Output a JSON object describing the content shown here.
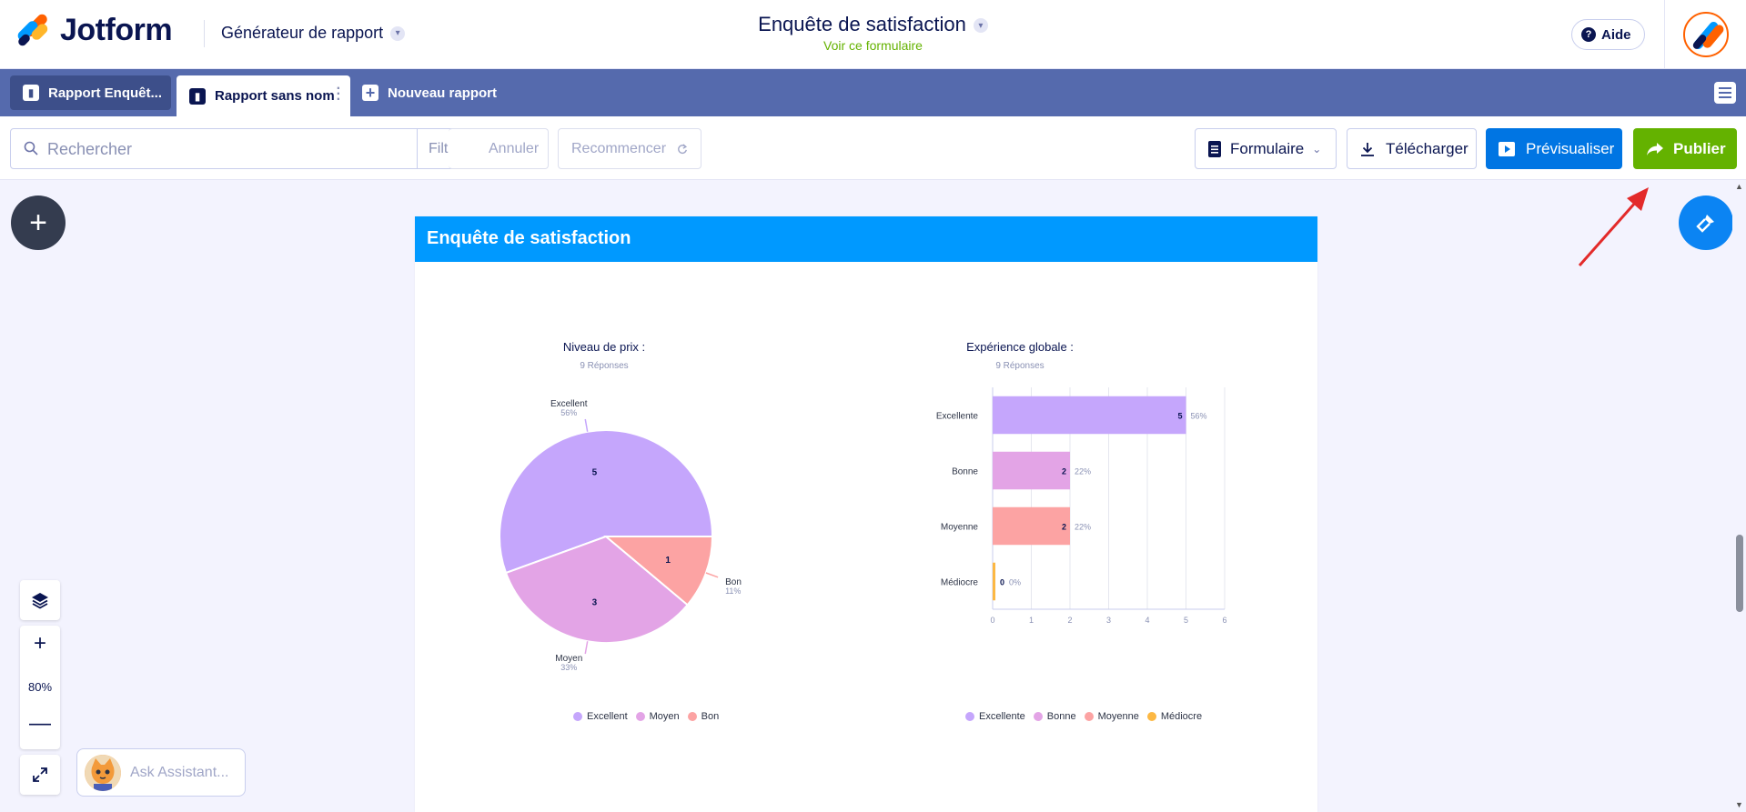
{
  "header": {
    "logo_text": "Jotform",
    "app_switcher": "Générateur de rapport",
    "form_title": "Enquête de satisfaction",
    "form_link": "Voir ce formulaire",
    "help_label": "Aide"
  },
  "tabs": [
    {
      "label": "Rapport Enquêt..."
    },
    {
      "label": "Rapport sans nom"
    },
    {
      "label": "Nouveau rapport"
    }
  ],
  "toolbar": {
    "search_placeholder": "Rechercher",
    "filter_label": "Filtre",
    "undo_label": "Annuler",
    "redo_label": "Recommencer",
    "form_label": "Formulaire",
    "download_label": "Télécharger",
    "preview_label": "Prévisualiser",
    "publish_label": "Publier"
  },
  "report": {
    "header_title": "Enquête de satisfaction"
  },
  "chart_data": [
    {
      "type": "pie",
      "title": "Niveau de prix :",
      "subtitle": "9 Réponses",
      "categories": [
        "Excellent",
        "Moyen",
        "Bon"
      ],
      "values": [
        5,
        3,
        1
      ],
      "percent_labels": [
        "56%",
        "33%",
        "11%"
      ],
      "colors": [
        "#c5a6fc",
        "#e3a4e6",
        "#fca3a3"
      ],
      "legend": "bottom"
    },
    {
      "type": "bar",
      "orientation": "horizontal",
      "title": "Expérience globale :",
      "subtitle": "9 Réponses",
      "categories": [
        "Excellente",
        "Bonne",
        "Moyenne",
        "Médiocre"
      ],
      "values": [
        5,
        2,
        2,
        0
      ],
      "percent_labels": [
        "56%",
        "22%",
        "22%",
        "0%"
      ],
      "colors": [
        "#c5a6fc",
        "#e3a4e6",
        "#fca3a3",
        "#fcb843"
      ],
      "xlim": [
        0,
        6
      ],
      "xticks": [
        "0",
        "1",
        "2",
        "3",
        "4",
        "5",
        "6"
      ],
      "grid": true,
      "legend": "bottom"
    }
  ],
  "zoom": {
    "value": "80%"
  },
  "assistant": {
    "label": "Ask Assistant..."
  }
}
